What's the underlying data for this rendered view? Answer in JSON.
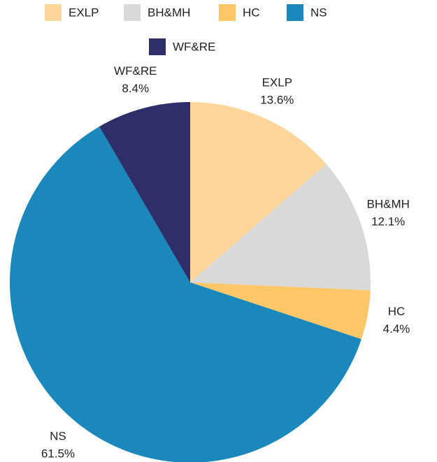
{
  "chart_data": {
    "type": "pie",
    "categories": [
      "EXLP",
      "BH&MH",
      "HC",
      "NS",
      "WF&RE"
    ],
    "values": [
      13.6,
      12.1,
      4.4,
      61.5,
      8.4
    ],
    "value_labels": [
      "13.6%",
      "12.1%",
      "4.4%",
      "61.5%",
      "8.4%"
    ],
    "colors": [
      "#fed69a",
      "#d9d9d9",
      "#fdc667",
      "#1a88ba",
      "#2e2e6b"
    ],
    "legend": "top"
  }
}
